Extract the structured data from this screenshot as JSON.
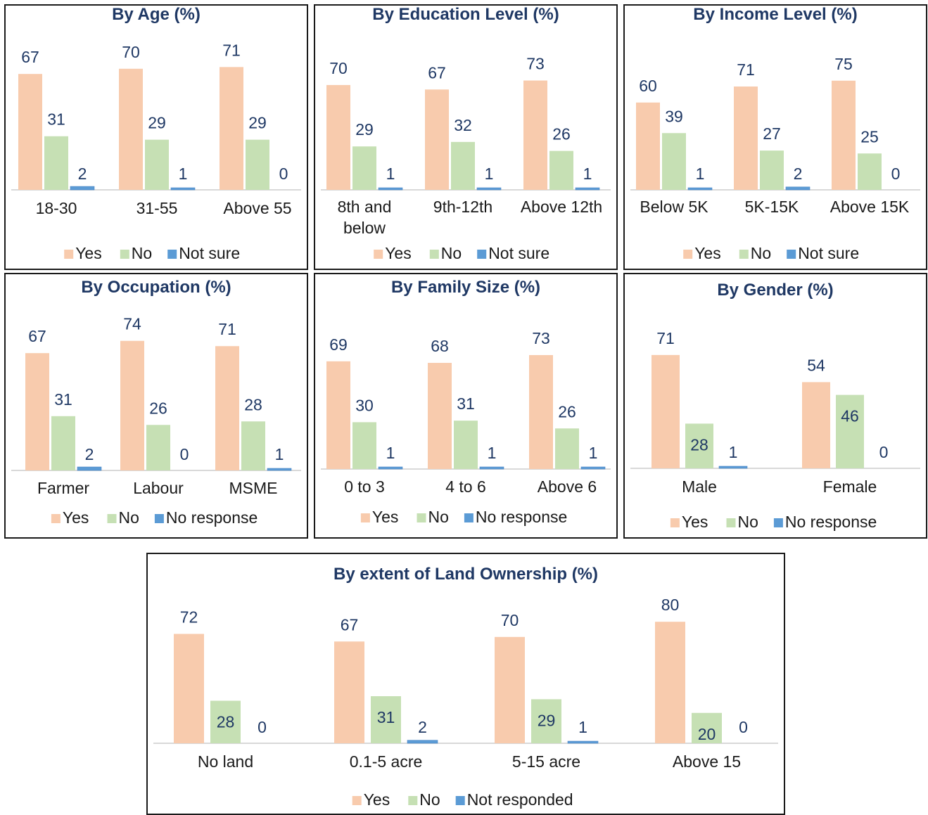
{
  "colors": {
    "yes": "#f8cbad",
    "no": "#c6e0b4",
    "other": "#5b9bd5",
    "label": "#1f3864",
    "axis": "#d9d9d9",
    "title": "#1f3864"
  },
  "chart_data": [
    {
      "type": "bar",
      "title": "By Age (%)",
      "categories": [
        "18-30",
        "31-55",
        "Above 55"
      ],
      "series": [
        {
          "name": "Yes",
          "values": [
            67,
            70,
            71
          ]
        },
        {
          "name": "No",
          "values": [
            31,
            29,
            29
          ]
        },
        {
          "name": "Not sure",
          "values": [
            2,
            1,
            0
          ]
        }
      ],
      "legend": "bottom"
    },
    {
      "type": "bar",
      "title": "By Education Level (%)",
      "categories": [
        "8th and below",
        "9th-12th",
        "Above 12th"
      ],
      "series": [
        {
          "name": "Yes",
          "values": [
            70,
            67,
            73
          ]
        },
        {
          "name": "No",
          "values": [
            29,
            32,
            26
          ]
        },
        {
          "name": "Not sure",
          "values": [
            1,
            1,
            1
          ]
        }
      ],
      "legend": "bottom"
    },
    {
      "type": "bar",
      "title": "By Income Level (%)",
      "categories": [
        "Below 5K",
        "5K-15K",
        "Above 15K"
      ],
      "series": [
        {
          "name": "Yes",
          "values": [
            60,
            71,
            75
          ]
        },
        {
          "name": "No",
          "values": [
            39,
            27,
            25
          ]
        },
        {
          "name": "Not sure",
          "values": [
            1,
            2,
            0
          ]
        }
      ],
      "legend": "bottom"
    },
    {
      "type": "bar",
      "title": "By Occupation (%)",
      "categories": [
        "Farmer",
        "Labour",
        "MSME"
      ],
      "series": [
        {
          "name": "Yes",
          "values": [
            67,
            74,
            71
          ]
        },
        {
          "name": "No",
          "values": [
            31,
            26,
            28
          ]
        },
        {
          "name": "No response",
          "values": [
            2,
            0,
            1
          ]
        }
      ],
      "legend": "bottom"
    },
    {
      "type": "bar",
      "title": "By Family Size (%)",
      "categories": [
        "0 to 3",
        "4 to 6",
        "Above 6"
      ],
      "series": [
        {
          "name": "Yes",
          "values": [
            69,
            68,
            73
          ]
        },
        {
          "name": "No",
          "values": [
            30,
            31,
            26
          ]
        },
        {
          "name": "No response",
          "values": [
            1,
            1,
            1
          ]
        }
      ],
      "legend": "bottom"
    },
    {
      "type": "bar",
      "title": "By Gender (%)",
      "categories": [
        "Male",
        "Female"
      ],
      "series": [
        {
          "name": "Yes",
          "values": [
            71,
            54
          ]
        },
        {
          "name": "No",
          "values": [
            28,
            46
          ]
        },
        {
          "name": "No response",
          "values": [
            1,
            0
          ]
        }
      ],
      "legend": "bottom"
    },
    {
      "type": "bar",
      "title": "By extent of Land Ownership (%)",
      "categories": [
        "No land",
        "0.1-5 acre",
        "5-15 acre",
        "Above 15"
      ],
      "series": [
        {
          "name": "Yes",
          "values": [
            72,
            67,
            70,
            80
          ]
        },
        {
          "name": "No",
          "values": [
            28,
            31,
            29,
            20
          ]
        },
        {
          "name": "Not responded",
          "values": [
            0,
            2,
            1,
            0
          ]
        }
      ],
      "legend": "bottom"
    }
  ]
}
